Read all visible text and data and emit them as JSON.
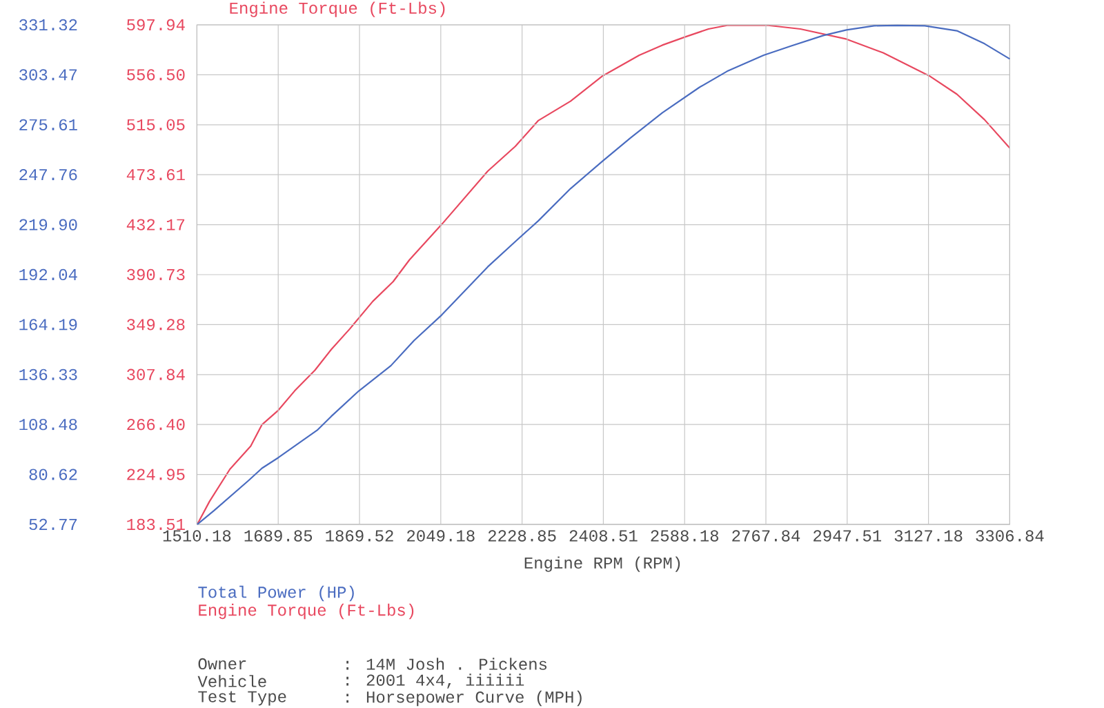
{
  "chart_data": {
    "type": "line",
    "y2label": "Engine Torque (Ft-Lbs)",
    "xlabel": "Engine RPM (RPM)",
    "xlim": [
      1510.18,
      3306.84
    ],
    "xticks": [
      1510.18,
      1689.85,
      1869.52,
      2049.18,
      2228.85,
      2408.51,
      2588.18,
      2767.84,
      2947.51,
      3127.18,
      3306.84
    ],
    "ylim": [
      52.77,
      331.32
    ],
    "yticks": [
      52.77,
      80.62,
      108.48,
      136.33,
      164.19,
      192.04,
      {
        "value": 219.9,
        "label": "219.90"
      },
      247.76,
      275.61,
      303.47,
      331.32
    ],
    "y2lim": [
      183.51,
      597.94
    ],
    "y2ticks": [
      183.51,
      224.95,
      {
        "value": 266.4,
        "label": "266.40"
      },
      307.84,
      349.28,
      390.73,
      432.17,
      473.61,
      515.05,
      {
        "value": 556.5,
        "label": "556.50"
      },
      597.94
    ],
    "grid": true,
    "legend": "bottom",
    "marker": "none",
    "line_style": "solid",
    "series": [
      {
        "name": "Total Power (HP)",
        "color": "#4a6cc0",
        "x": [
          1511,
          1548,
          1624,
          1654,
          1690,
          1776,
          1807,
          1868,
          1939,
          1990,
          2051,
          2153,
          2214,
          2265,
          2336,
          2407,
          2468,
          2539,
          2621,
          2682,
          2763,
          2824,
          2895,
          2946,
          3007,
          3058,
          3119,
          3190,
          3251,
          3306.8
        ],
        "values": [
          52.8,
          60.5,
          77.2,
          84.1,
          90.0,
          105.3,
          113.0,
          127.2,
          141.3,
          155.3,
          169.5,
          196.4,
          210.5,
          222.1,
          240.0,
          255.4,
          268.2,
          282.3,
          296.5,
          305.4,
          314.4,
          319.6,
          325.4,
          328.5,
          330.8,
          331.0,
          330.8,
          328.0,
          320.8,
          312.3
        ]
      },
      {
        "name": "Engine Torque (Ft-Lbs)",
        "color": "#e8485f",
        "axis": "y2",
        "x": [
          1511,
          1538,
          1583,
          1629,
          1654,
          1690,
          1726,
          1771,
          1807,
          1848,
          1899,
          1944,
          1980,
          2051,
          2153,
          2214,
          2265,
          2336,
          2407,
          2488,
          2539,
          2590,
          2641,
          2682,
          2743,
          2773,
          2844,
          2946,
          3027,
          3129,
          3190,
          3251,
          3306.8
        ],
        "values": [
          183.6,
          202.6,
          229.3,
          248.4,
          266.3,
          278.2,
          294.2,
          311.4,
          328.6,
          345.7,
          368.6,
          385.0,
          403.0,
          432.3,
          476.6,
          497.2,
          518.6,
          534.6,
          555.6,
          572.7,
          581.1,
          588.0,
          594.5,
          597.5,
          597.5,
          597.5,
          594.5,
          586.1,
          574.7,
          555.6,
          540.4,
          519.3,
          495.7
        ]
      }
    ],
    "annotations": [
      "Owner",
      ": 14M Josh  . Pickens",
      "Vehicle",
      ": 2001 4x4, iiiiii",
      "Test Type",
      ": Horsepower Curve (MPH)"
    ]
  }
}
